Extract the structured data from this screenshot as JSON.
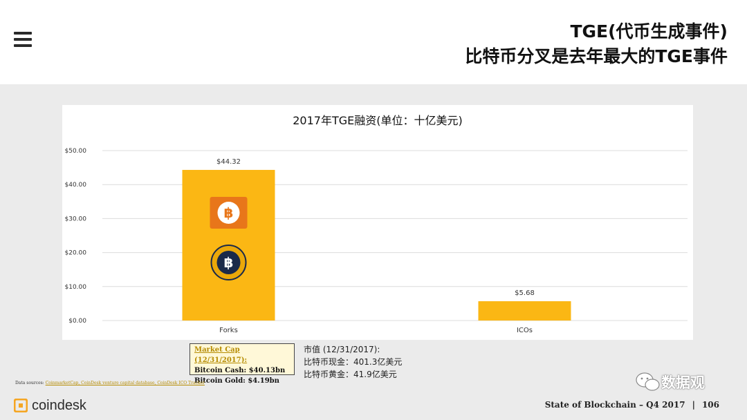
{
  "header": {
    "title_line1": "TGE(代币生成事件)",
    "title_line2": "比特币分叉是去年最大的TGE事件"
  },
  "chart_data": {
    "type": "bar",
    "title": "2017年TGE融资(单位：十亿美元)",
    "categories": [
      "Forks",
      "ICOs"
    ],
    "values": [
      44.32,
      5.68
    ],
    "data_labels": [
      "$44.32",
      "$5.68"
    ],
    "ylim": [
      0,
      50
    ],
    "yticks": [
      "$0.00",
      "$10.00",
      "$20.00",
      "$30.00",
      "$40.00",
      "$50.00"
    ],
    "xlabel": "",
    "ylabel": "",
    "grid": true,
    "bar_color": "#fbb714"
  },
  "market_cap_box": {
    "title": "Market Cap (12/31/2017):",
    "line1": "Bitcoin Cash: $40.13bn",
    "line2": "Bitcoin Gold: $4.19bn"
  },
  "cn_note": {
    "line1": "市值 (12/31/2017):",
    "line2": "比特币现金：401.3亿美元",
    "line3": "比特币黄金：41.9亿美元"
  },
  "sources": {
    "label": "Data sources:",
    "links": "CoinmarketCap, CoinDesk venture capital database, CoinDesk ICO Tracker"
  },
  "logo": {
    "text": "coindesk",
    "accent": "#f5a623"
  },
  "footer": {
    "report": "State of Blockchain – Q4 2017",
    "separator": "|",
    "page": "106"
  },
  "badge": {
    "text": "数据观"
  },
  "icons": {
    "menu": "hamburger-menu-icon",
    "bch": "bitcoin-cash-logo",
    "btg": "bitcoin-gold-logo"
  }
}
